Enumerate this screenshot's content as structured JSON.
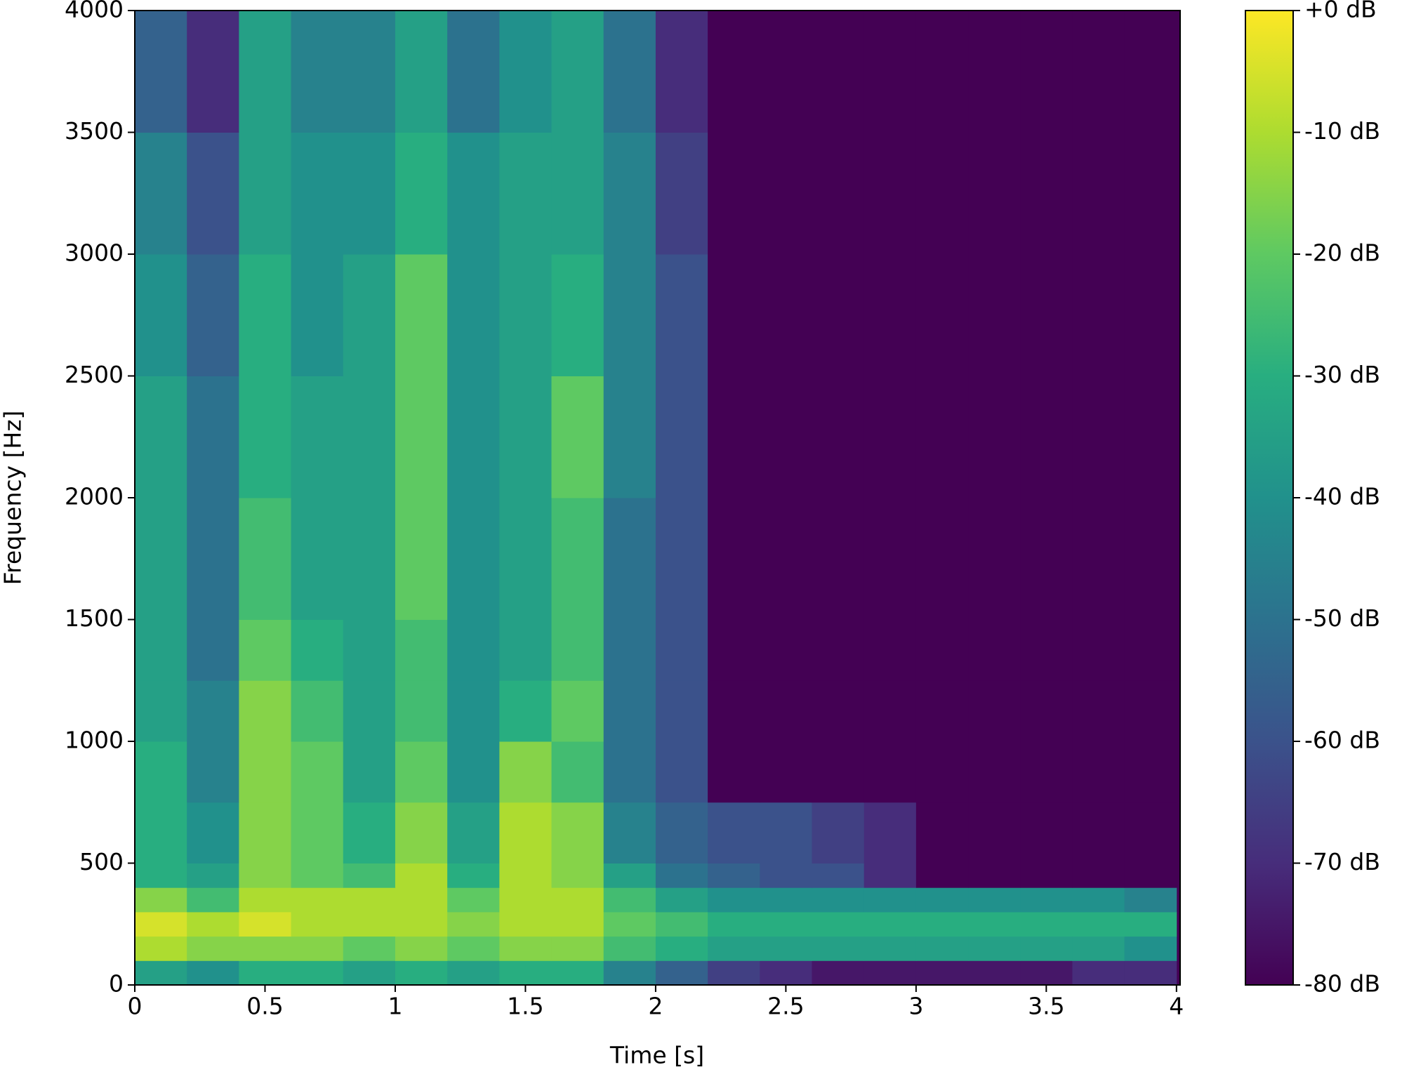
{
  "chart_data": {
    "type": "heatmap",
    "xlabel": "Time [s]",
    "ylabel": "Frequency [Hz]",
    "xlim": [
      0,
      4.014
    ],
    "ylim": [
      0,
      4000
    ],
    "xticks": [
      0,
      0.5,
      1,
      1.5,
      2,
      2.5,
      3,
      3.5,
      4
    ],
    "yticks": [
      0,
      500,
      1000,
      1500,
      2000,
      2500,
      3000,
      3500,
      4000
    ],
    "xbins": [
      0,
      0.2,
      0.4,
      0.6,
      0.8,
      1,
      1.2,
      1.4,
      1.6,
      1.8,
      2,
      2.2,
      2.4,
      2.6,
      2.8,
      3,
      3.2,
      3.4,
      3.6,
      3.8,
      4
    ],
    "ybins": [
      0,
      100,
      200,
      300,
      400,
      500,
      750,
      1000,
      1250,
      1500,
      2000,
      2500,
      3000,
      3500,
      4000
    ],
    "values": [
      [
        -35,
        -40,
        -30,
        -30,
        -35,
        -30,
        -35,
        -30,
        -30,
        -45,
        -55,
        -65,
        -70,
        -75,
        -75,
        -75,
        -75,
        -75,
        -70,
        -70
      ],
      [
        -10,
        -15,
        -15,
        -15,
        -20,
        -15,
        -20,
        -15,
        -15,
        -25,
        -30,
        -35,
        -35,
        -35,
        -35,
        -35,
        -35,
        -35,
        -35,
        -40
      ],
      [
        -5,
        -10,
        -5,
        -10,
        -10,
        -10,
        -15,
        -10,
        -10,
        -20,
        -25,
        -30,
        -30,
        -30,
        -30,
        -30,
        -30,
        -30,
        -30,
        -30
      ],
      [
        -15,
        -25,
        -10,
        -10,
        -10,
        -10,
        -20,
        -10,
        -10,
        -25,
        -35,
        -40,
        -40,
        -40,
        -40,
        -40,
        -40,
        -40,
        -40,
        -45
      ],
      [
        -30,
        -35,
        -15,
        -20,
        -25,
        -10,
        -30,
        -10,
        -15,
        -35,
        -50,
        -55,
        -60,
        -60,
        -70,
        -80,
        -80,
        -80,
        -80,
        -80
      ],
      [
        -30,
        -40,
        -15,
        -20,
        -30,
        -15,
        -35,
        -10,
        -15,
        -45,
        -55,
        -60,
        -60,
        -65,
        -70,
        -80,
        -80,
        -80,
        -80,
        -80
      ],
      [
        -30,
        -45,
        -15,
        -20,
        -35,
        -20,
        -40,
        -15,
        -25,
        -50,
        -60,
        -80,
        -80,
        -80,
        -80,
        -80,
        -80,
        -80,
        -80,
        -80
      ],
      [
        -35,
        -45,
        -15,
        -25,
        -35,
        -25,
        -40,
        -30,
        -20,
        -50,
        -60,
        -80,
        -80,
        -80,
        -80,
        -80,
        -80,
        -80,
        -80,
        -80
      ],
      [
        -35,
        -50,
        -20,
        -30,
        -35,
        -25,
        -40,
        -35,
        -25,
        -50,
        -60,
        -80,
        -80,
        -80,
        -80,
        -80,
        -80,
        -80,
        -80,
        -80
      ],
      [
        -35,
        -50,
        -25,
        -35,
        -35,
        -20,
        -40,
        -35,
        -25,
        -50,
        -60,
        -80,
        -80,
        -80,
        -80,
        -80,
        -80,
        -80,
        -80,
        -80
      ],
      [
        -35,
        -50,
        -30,
        -35,
        -35,
        -20,
        -40,
        -35,
        -20,
        -45,
        -60,
        -80,
        -80,
        -80,
        -80,
        -80,
        -80,
        -80,
        -80,
        -80
      ],
      [
        -40,
        -55,
        -30,
        -40,
        -35,
        -20,
        -40,
        -35,
        -30,
        -45,
        -60,
        -80,
        -80,
        -80,
        -80,
        -80,
        -80,
        -80,
        -80,
        -80
      ],
      [
        -45,
        -60,
        -35,
        -40,
        -40,
        -30,
        -40,
        -35,
        -35,
        -45,
        -65,
        -80,
        -80,
        -80,
        -80,
        -80,
        -80,
        -80,
        -80,
        -80
      ],
      [
        -55,
        -70,
        -35,
        -45,
        -45,
        -35,
        -50,
        -40,
        -35,
        -50,
        -70,
        -80,
        -80,
        -80,
        -80,
        -80,
        -80,
        -80,
        -80,
        -80
      ]
    ],
    "clim": [
      -80,
      0
    ],
    "cticks": [
      {
        "value": 0,
        "label": "+0 dB"
      },
      {
        "value": -10,
        "label": "-10 dB"
      },
      {
        "value": -20,
        "label": "-20 dB"
      },
      {
        "value": -30,
        "label": "-30 dB"
      },
      {
        "value": -40,
        "label": "-40 dB"
      },
      {
        "value": -50,
        "label": "-50 dB"
      },
      {
        "value": -60,
        "label": "-60 dB"
      },
      {
        "value": -70,
        "label": "-70 dB"
      },
      {
        "value": -80,
        "label": "-80 dB"
      }
    ],
    "colormap": [
      "#440154",
      "#472d7b",
      "#3b528b",
      "#2c728e",
      "#21918c",
      "#28ae80",
      "#5ec962",
      "#addc30",
      "#fde725"
    ]
  }
}
